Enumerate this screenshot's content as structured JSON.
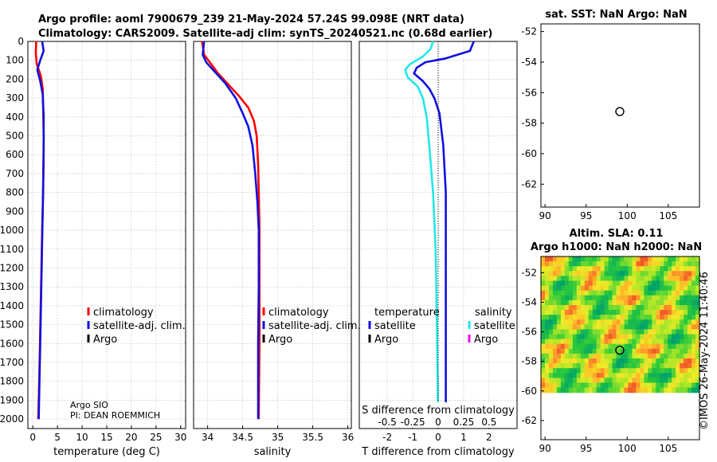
{
  "titles": {
    "line1": "Argo profile: aoml 7900679_239 21-May-2024 57.24S 99.098E (NRT data)",
    "line2": "Climatology: CARS2009. Satellite-adj clim: synTS_20240521.nc (0.68d earlier)"
  },
  "credits": {
    "argo_line1": "Argo SIO",
    "argo_line2": "PI: DEAN ROEMMICH",
    "imos": "©IMOS 26-May-2024 11:40:46"
  },
  "colors": {
    "climatology": "#ff0000",
    "satellite": "#1010e0",
    "argo": "#000000",
    "satellite_s": "#20e8e8",
    "argo_s": "#ff00ff"
  },
  "chart_data": [
    {
      "type": "line",
      "id": "temperature",
      "xlabel": "temperature (deg C)",
      "xlim": [
        -1,
        31
      ],
      "xticks": [
        0,
        5,
        10,
        15,
        20,
        25,
        30
      ],
      "ylim": [
        0,
        2050
      ],
      "yticks": [
        0,
        100,
        200,
        300,
        400,
        500,
        600,
        700,
        800,
        900,
        1000,
        1100,
        1200,
        1300,
        1400,
        1500,
        1600,
        1700,
        1800,
        1900,
        2000
      ],
      "legend": [
        "climatology",
        "satellite-adj. clim.",
        "Argo"
      ],
      "series": [
        {
          "name": "climatology",
          "color": "#ff0000",
          "points": [
            [
              0.7,
              0
            ],
            [
              0.6,
              60
            ],
            [
              0.8,
              120
            ],
            [
              1.6,
              180
            ],
            [
              2.0,
              250
            ],
            [
              2.1,
              350
            ],
            [
              2.2,
              500
            ],
            [
              2.1,
              800
            ],
            [
              1.9,
              1000
            ],
            [
              1.6,
              1400
            ],
            [
              1.3,
              1800
            ],
            [
              1.1,
              2000
            ]
          ]
        },
        {
          "name": "satellite-adj. clim.",
          "color": "#1010e0",
          "points": [
            [
              1.9,
              0
            ],
            [
              2.2,
              50
            ],
            [
              1.5,
              100
            ],
            [
              0.9,
              150
            ],
            [
              1.5,
              210
            ],
            [
              2.0,
              280
            ],
            [
              2.2,
              400
            ],
            [
              2.2,
              600
            ],
            [
              2.0,
              900
            ],
            [
              1.8,
              1200
            ],
            [
              1.5,
              1600
            ],
            [
              1.2,
              2000
            ]
          ]
        }
      ]
    },
    {
      "type": "line",
      "id": "salinity",
      "xlabel": "salinity",
      "xlim": [
        33.8,
        36.05
      ],
      "xticks": [
        34,
        34.5,
        35,
        35.5,
        36
      ],
      "xticklabels": [
        "34",
        "34.5",
        "35",
        "35.5",
        "36"
      ],
      "ylim": [
        0,
        2050
      ],
      "legend": [
        "climatology",
        "satellite-adj. clim.",
        "Argo"
      ],
      "series": [
        {
          "name": "climatology",
          "color": "#ff0000",
          "points": [
            [
              33.92,
              0
            ],
            [
              33.95,
              70
            ],
            [
              34.05,
              120
            ],
            [
              34.15,
              170
            ],
            [
              34.3,
              230
            ],
            [
              34.45,
              290
            ],
            [
              34.58,
              350
            ],
            [
              34.66,
              420
            ],
            [
              34.7,
              500
            ],
            [
              34.72,
              650
            ],
            [
              34.73,
              800
            ],
            [
              34.74,
              1000
            ],
            [
              34.74,
              1300
            ],
            [
              34.74,
              1600
            ],
            [
              34.73,
              2000
            ]
          ]
        },
        {
          "name": "satellite-adj. clim.",
          "color": "#1010e0",
          "points": [
            [
              33.95,
              0
            ],
            [
              33.93,
              70
            ],
            [
              33.98,
              110
            ],
            [
              34.1,
              160
            ],
            [
              34.25,
              220
            ],
            [
              34.4,
              300
            ],
            [
              34.5,
              380
            ],
            [
              34.58,
              450
            ],
            [
              34.64,
              550
            ],
            [
              34.68,
              700
            ],
            [
              34.71,
              850
            ],
            [
              34.73,
              1000
            ],
            [
              34.73,
              1300
            ],
            [
              34.72,
              1600
            ],
            [
              34.72,
              2000
            ]
          ]
        }
      ]
    },
    {
      "type": "line",
      "id": "difference",
      "xlabel": "T difference from climatology",
      "xlabel_top": "S difference from climatology",
      "xlim": [
        -3.1,
        3.1
      ],
      "xticks": [
        -2,
        -1,
        0,
        1,
        2
      ],
      "s_ticks": [
        -0.5,
        -0.25,
        0,
        0.25,
        0.5
      ],
      "s_ticklabels": [
        "-0.5",
        "-0.25",
        "0",
        "0.25",
        "0.5"
      ],
      "ylim": [
        0,
        2050
      ],
      "legend_titles": [
        "temperature",
        "salinity"
      ],
      "legend": [
        "satellite",
        "Argo",
        "satellite",
        "Argo"
      ],
      "series": [
        {
          "name": "T satellite",
          "color": "#1010e0",
          "points": [
            [
              1.4,
              0
            ],
            [
              1.25,
              50
            ],
            [
              0.3,
              90
            ],
            [
              -0.5,
              110
            ],
            [
              -0.85,
              140
            ],
            [
              -0.95,
              170
            ],
            [
              -0.6,
              210
            ],
            [
              -0.35,
              250
            ],
            [
              -0.15,
              300
            ],
            [
              0.05,
              380
            ],
            [
              0.2,
              550
            ],
            [
              0.3,
              800
            ],
            [
              0.3,
              1200
            ],
            [
              0.3,
              1600
            ],
            [
              0.3,
              2000
            ]
          ]
        },
        {
          "name": "S satellite",
          "color": "#20e8e8",
          "points": [
            [
              -0.2,
              0
            ],
            [
              -0.3,
              40
            ],
            [
              -0.6,
              80
            ],
            [
              -1.1,
              120
            ],
            [
              -1.3,
              150
            ],
            [
              -1.2,
              190
            ],
            [
              -0.8,
              240
            ],
            [
              -0.6,
              300
            ],
            [
              -0.45,
              400
            ],
            [
              -0.35,
              550
            ],
            [
              -0.2,
              800
            ],
            [
              -0.1,
              1100
            ],
            [
              -0.05,
              1500
            ],
            [
              0.0,
              2000
            ]
          ]
        }
      ]
    },
    {
      "type": "scatter",
      "id": "sst_map",
      "title": "sat. SST: NaN Argo: NaN",
      "xlim": [
        89.5,
        108.8
      ],
      "ylim": [
        -63.5,
        -51.5
      ],
      "xticks": [
        90,
        95,
        100,
        105
      ],
      "yticks": [
        -52,
        -54,
        -56,
        -58,
        -60,
        -62
      ],
      "points": [
        [
          99.098,
          -57.24
        ]
      ]
    },
    {
      "type": "heatmap",
      "id": "sla_map",
      "title_line1": "Altim. SLA: 0.11",
      "title_line2": "Argo h1000: NaN h2000: NaN",
      "xlim": [
        89.5,
        108.8
      ],
      "ylim": [
        -63.3,
        -50.9
      ],
      "xticks": [
        90,
        95,
        100,
        105
      ],
      "yticks": [
        -52,
        -54,
        -56,
        -58,
        -60,
        -62
      ],
      "extent_lat": [
        -60.1,
        -50.9
      ],
      "points": [
        [
          99.098,
          -57.24
        ]
      ]
    }
  ]
}
